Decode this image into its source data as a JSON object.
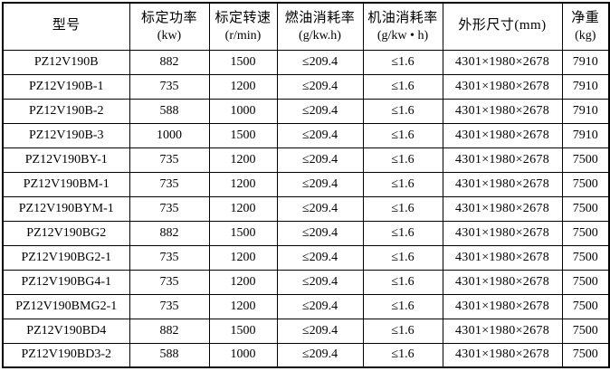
{
  "table": {
    "column_keys": [
      "model",
      "rated-power",
      "rated-speed",
      "fuel-consumption",
      "oil-consumption",
      "dimensions",
      "net-weight"
    ],
    "columns": [
      {
        "line1": "型号",
        "line2": ""
      },
      {
        "line1": "标定功率",
        "line2": "(kw)"
      },
      {
        "line1": "标定转速",
        "line2": "(r/min)"
      },
      {
        "line1": "燃油消耗率",
        "line2": "(g/kw.h)"
      },
      {
        "line1": "机油消耗率",
        "line2": "(g/kw • h)"
      },
      {
        "line1": "外形尺寸(mm)",
        "line2": ""
      },
      {
        "line1": "净重",
        "line2": "(kg)"
      }
    ],
    "rows": [
      [
        "PZ12V190B",
        "882",
        "1500",
        "≤209.4",
        "≤1.6",
        "4301×1980×2678",
        "7910"
      ],
      [
        "PZ12V190B-1",
        "735",
        "1200",
        "≤209.4",
        "≤1.6",
        "4301×1980×2678",
        "7910"
      ],
      [
        "PZ12V190B-2",
        "588",
        "1000",
        "≤209.4",
        "≤1.6",
        "4301×1980×2678",
        "7910"
      ],
      [
        "PZ12V190B-3",
        "1000",
        "1500",
        "≤209.4",
        "≤1.6",
        "4301×1980×2678",
        "7910"
      ],
      [
        "PZ12V190BY-1",
        "735",
        "1200",
        "≤209.4",
        "≤1.6",
        "4301×1980×2678",
        "7500"
      ],
      [
        "PZ12V190BM-1",
        "735",
        "1200",
        "≤209.4",
        "≤1.6",
        "4301×1980×2678",
        "7500"
      ],
      [
        "PZ12V190BYM-1",
        "735",
        "1200",
        "≤209.4",
        "≤1.6",
        "4301×1980×2678",
        "7500"
      ],
      [
        "PZ12V190BG2",
        "882",
        "1500",
        "≤209.4",
        "≤1.6",
        "4301×1980×2678",
        "7500"
      ],
      [
        "PZ12V190BG2-1",
        "735",
        "1200",
        "≤209.4",
        "≤1.6",
        "4301×1980×2678",
        "7500"
      ],
      [
        "PZ12V190BG4-1",
        "735",
        "1200",
        "≤209.4",
        "≤1.6",
        "4301×1980×2678",
        "7500"
      ],
      [
        "PZ12V190BMG2-1",
        "735",
        "1200",
        "≤209.4",
        "≤1.6",
        "4301×1980×2678",
        "7500"
      ],
      [
        "PZ12V190BD4",
        "882",
        "1500",
        "≤209.4",
        "≤1.6",
        "4301×1980×2678",
        "7500"
      ],
      [
        "PZ12V190BD3-2",
        "588",
        "1000",
        "≤209.4",
        "≤1.6",
        "4301×1980×2678",
        "7500"
      ]
    ],
    "colors": {
      "border": "#000000",
      "text": "#000000",
      "background": "#ffffff"
    }
  }
}
